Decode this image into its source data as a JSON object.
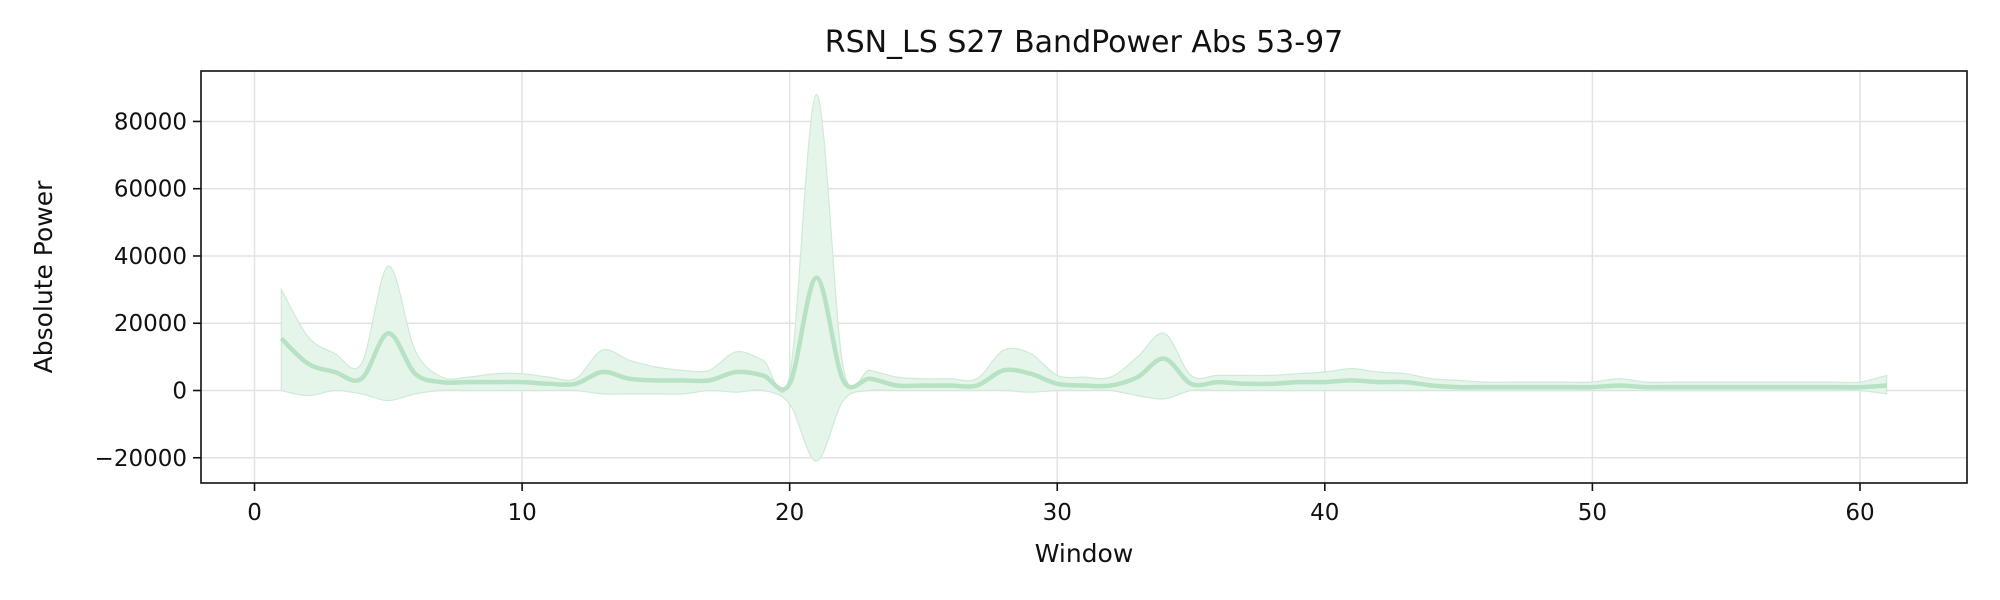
{
  "chart_data": {
    "type": "line",
    "title": "RSN_LS S27 BandPower Abs 53-97",
    "xlabel": "Window",
    "ylabel": "Absolute Power",
    "xlim": [
      -2,
      64
    ],
    "ylim": [
      -27500,
      95000
    ],
    "xticks": [
      0,
      10,
      20,
      30,
      40,
      50,
      60
    ],
    "yticks": [
      -20000,
      0,
      20000,
      40000,
      60000,
      80000
    ],
    "ytick_labels": [
      "−20000",
      "0",
      "20000",
      "40000",
      "60000",
      "80000"
    ],
    "grid": true,
    "legend": "none",
    "colors": {
      "line": "#b7e2c4",
      "band": "#e6f5ea",
      "band_edge": "#cdebd6"
    },
    "series": [
      {
        "x": [
          1,
          2,
          3,
          4,
          5,
          6,
          7,
          8,
          9,
          10,
          11,
          12,
          13,
          14,
          15,
          16,
          17,
          18,
          19,
          20,
          21,
          22,
          23,
          24,
          25,
          26,
          27,
          28,
          29,
          30,
          31,
          32,
          33,
          34,
          35,
          36,
          37,
          38,
          39,
          40,
          41,
          42,
          43,
          44,
          45,
          46,
          47,
          48,
          49,
          50,
          51,
          52,
          53,
          54,
          55,
          56,
          57,
          58,
          59,
          60,
          61
        ],
        "mean": [
          15500,
          8000,
          5500,
          3500,
          17000,
          5000,
          2500,
          2500,
          2500,
          2500,
          2000,
          2000,
          5500,
          3500,
          3000,
          3000,
          3000,
          5500,
          4500,
          2000,
          33500,
          3000,
          3500,
          1500,
          1500,
          1500,
          1500,
          6000,
          5000,
          2000,
          1500,
          1500,
          4000,
          9500,
          2000,
          2500,
          2000,
          2000,
          2500,
          2500,
          3000,
          2500,
          2500,
          1500,
          1000,
          1000,
          1000,
          1000,
          1000,
          1000,
          1500,
          1000,
          1000,
          1000,
          1000,
          1000,
          1000,
          1000,
          1000,
          1000,
          1500
        ],
        "upper": [
          30000,
          16000,
          11000,
          8000,
          37000,
          12000,
          4000,
          4000,
          5000,
          5000,
          4000,
          3500,
          12000,
          9000,
          7000,
          6000,
          6000,
          11500,
          9000,
          4500,
          88000,
          7000,
          6000,
          4000,
          3500,
          3500,
          3500,
          12000,
          11000,
          4500,
          4000,
          4000,
          10000,
          17000,
          4500,
          4500,
          4500,
          4500,
          5000,
          5500,
          6500,
          5500,
          5000,
          3500,
          3000,
          2500,
          2500,
          2500,
          2500,
          2500,
          3500,
          2500,
          2500,
          2500,
          2500,
          2500,
          2500,
          2500,
          2500,
          2500,
          4500
        ],
        "lower": [
          0,
          -1500,
          0,
          -1000,
          -3000,
          -1000,
          0,
          0,
          0,
          0,
          0,
          0,
          -1000,
          -1000,
          -1000,
          -1000,
          0,
          -500,
          0,
          -4000,
          -21000,
          -3000,
          0,
          0,
          0,
          0,
          0,
          0,
          -500,
          0,
          0,
          0,
          -1500,
          -2500,
          0,
          0,
          0,
          0,
          0,
          0,
          0,
          0,
          0,
          0,
          0,
          0,
          0,
          0,
          0,
          0,
          0,
          0,
          0,
          0,
          0,
          0,
          0,
          0,
          0,
          0,
          -1000
        ]
      }
    ]
  }
}
